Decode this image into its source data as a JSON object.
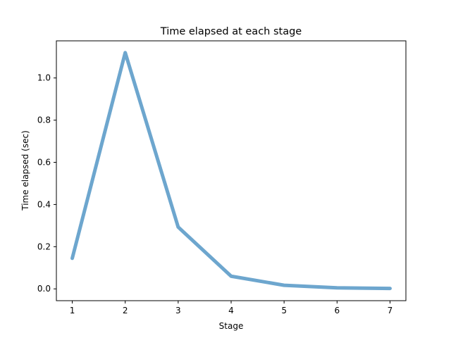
{
  "chart_data": {
    "type": "line",
    "title": "Time elapsed at each stage",
    "xlabel": "Stage",
    "ylabel": "Time elapsed (sec)",
    "x": [
      1,
      2,
      3,
      4,
      5,
      6,
      7
    ],
    "series": [
      {
        "values": [
          0.145,
          1.12,
          0.293,
          0.06,
          0.017,
          0.005,
          0.002
        ],
        "color": "#1f77b4",
        "opacity": 0.65
      }
    ],
    "xlim": [
      0.7,
      7.3
    ],
    "ylim": [
      -0.056,
      1.176
    ],
    "xticks": [
      1,
      2,
      3,
      4,
      5,
      6,
      7
    ],
    "xtick_labels": [
      "1",
      "2",
      "3",
      "4",
      "5",
      "6",
      "7"
    ],
    "yticks": [
      0.0,
      0.2,
      0.4,
      0.6,
      0.8,
      1.0
    ],
    "ytick_labels": [
      "0.0",
      "0.2",
      "0.4",
      "0.6",
      "0.8",
      "1.0"
    ],
    "grid": false,
    "legend": false
  }
}
